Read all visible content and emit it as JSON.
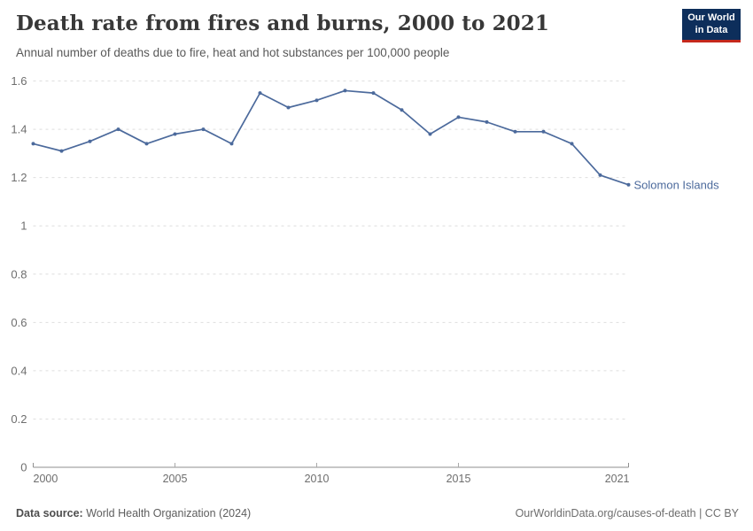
{
  "header": {
    "title": "Death rate from fires and burns, 2000 to 2021",
    "subtitle": "Annual number of deaths due to fire, heat and hot substances per 100,000 people"
  },
  "logo": {
    "line1": "Our World",
    "line2": "in Data",
    "bg_color": "#0d2e5b",
    "accent_color": "#c5281c"
  },
  "chart_data": {
    "type": "line",
    "title": "Death rate from fires and burns, 2000 to 2021",
    "subtitle": "Annual number of deaths due to fire, heat and hot substances per 100,000 people",
    "xlabel": "",
    "ylabel": "",
    "xlim": [
      2000,
      2021
    ],
    "ylim": [
      0,
      1.6
    ],
    "x_ticks": [
      2000,
      2005,
      2010,
      2015,
      2021
    ],
    "y_ticks": [
      0,
      0.2,
      0.4,
      0.6,
      0.8,
      1,
      1.2,
      1.4,
      1.6
    ],
    "grid": "horizontal-dashed",
    "legend_position": "end-of-line-label",
    "series": [
      {
        "name": "Solomon Islands",
        "color": "#4C6A9C",
        "x": [
          2000,
          2001,
          2002,
          2003,
          2004,
          2005,
          2006,
          2007,
          2008,
          2009,
          2010,
          2011,
          2012,
          2013,
          2014,
          2015,
          2016,
          2017,
          2018,
          2019,
          2020,
          2021
        ],
        "values": [
          1.34,
          1.31,
          1.35,
          1.4,
          1.34,
          1.38,
          1.4,
          1.34,
          1.55,
          1.49,
          1.52,
          1.56,
          1.55,
          1.48,
          1.38,
          1.45,
          1.43,
          1.39,
          1.39,
          1.34,
          1.21,
          1.17
        ]
      }
    ],
    "theme": {
      "grid_color": "#dedede",
      "axis_color": "#8f8f8f",
      "tick_color": "#a9a9a9",
      "tick_label_color": "#6e6e6e"
    }
  },
  "footer": {
    "datasource_label": "Data source:",
    "datasource_value": "World Health Organization (2024)",
    "citation": "OurWorldinData.org/causes-of-death | CC BY"
  }
}
